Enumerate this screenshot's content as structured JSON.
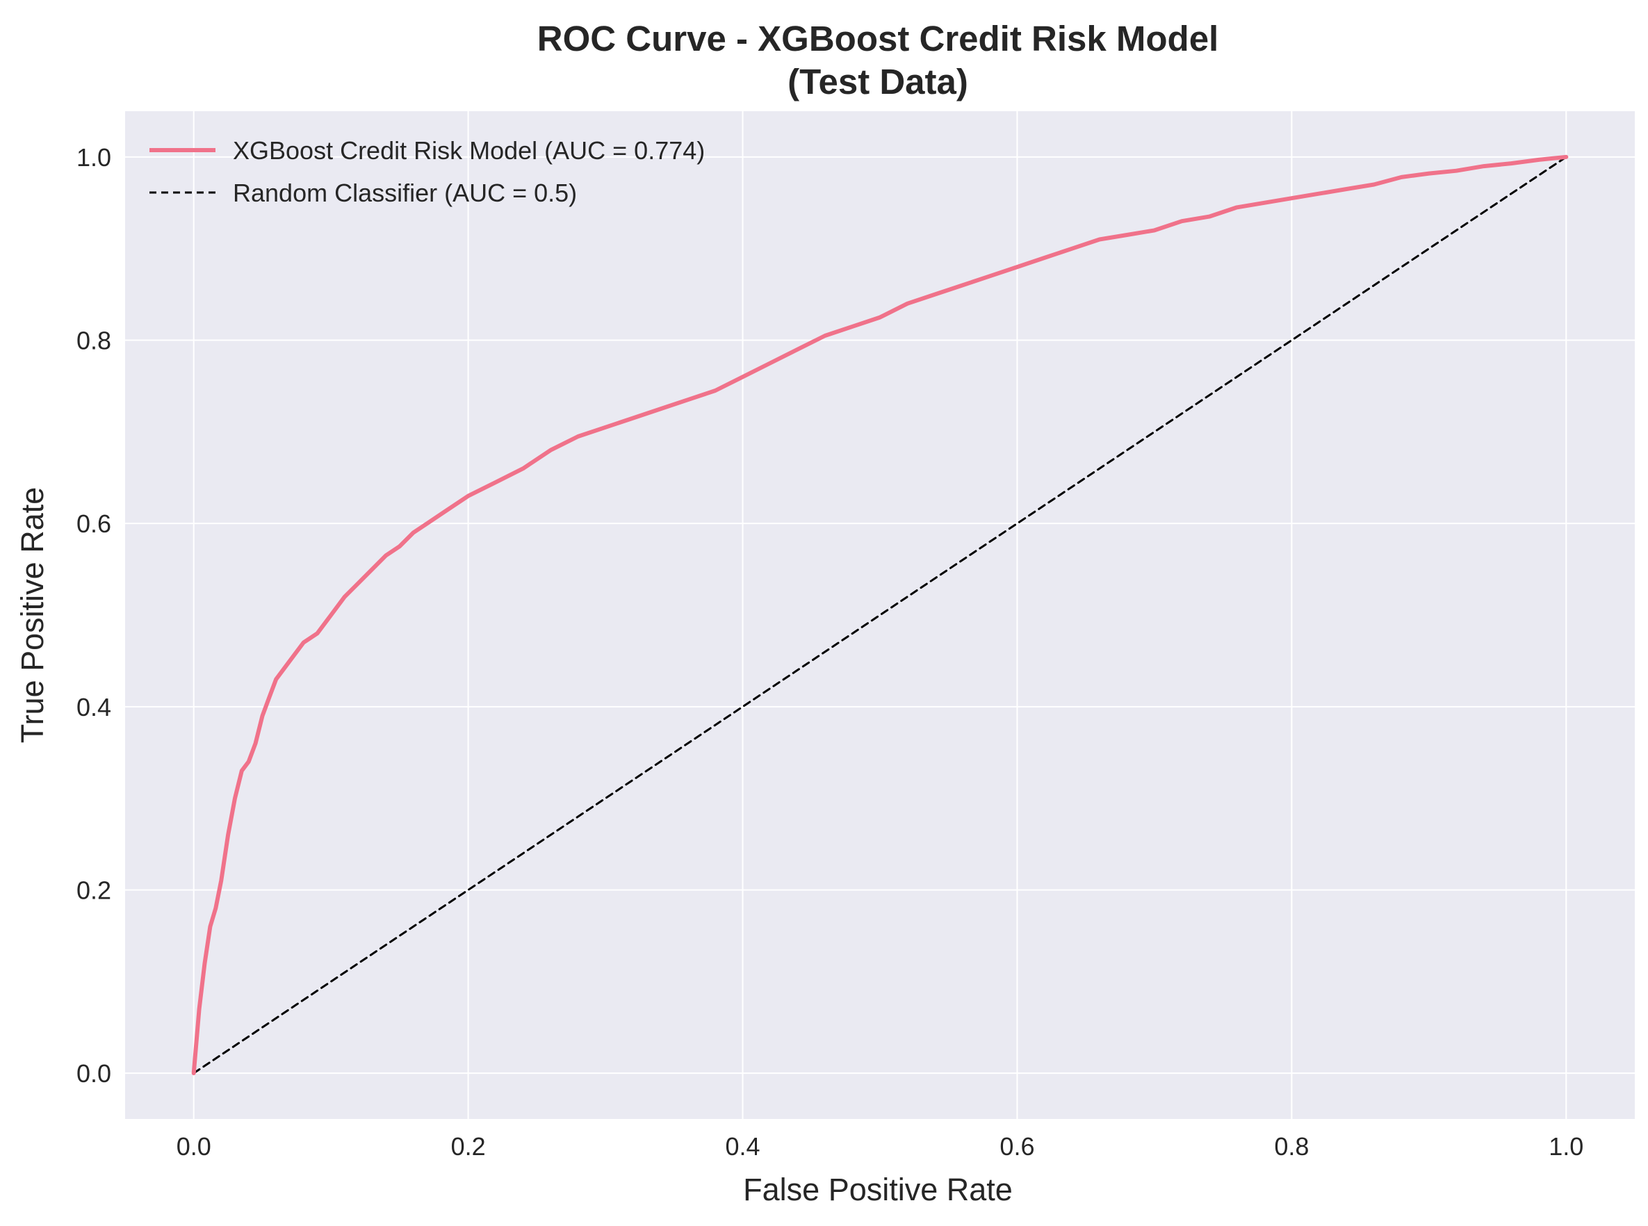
{
  "colors": {
    "plot_background": "#eaeaf2",
    "grid": "#ffffff",
    "model_line": "#f0728a",
    "random_line": "#000000",
    "text": "#262626"
  },
  "chart_data": {
    "type": "line",
    "title_line1": "ROC Curve - XGBoost Credit Risk Model",
    "title_line2": "(Test Data)",
    "xlabel": "False Positive Rate",
    "ylabel": "True Positive Rate",
    "xlim": [
      -0.05,
      1.05
    ],
    "ylim": [
      -0.05,
      1.05
    ],
    "grid": true,
    "legend_position": "top-left",
    "x_ticks": [
      "0.0",
      "0.2",
      "0.4",
      "0.6",
      "0.8",
      "1.0"
    ],
    "y_ticks": [
      "0.0",
      "0.2",
      "0.4",
      "0.6",
      "0.8",
      "1.0"
    ],
    "series": [
      {
        "name": "XGBoost Credit Risk Model (AUC = 0.774)",
        "style": "solid",
        "x": [
          0.0,
          0.004,
          0.008,
          0.012,
          0.016,
          0.02,
          0.025,
          0.03,
          0.035,
          0.04,
          0.045,
          0.05,
          0.055,
          0.06,
          0.065,
          0.07,
          0.08,
          0.09,
          0.1,
          0.11,
          0.12,
          0.13,
          0.14,
          0.15,
          0.16,
          0.17,
          0.18,
          0.2,
          0.22,
          0.24,
          0.26,
          0.28,
          0.3,
          0.32,
          0.34,
          0.36,
          0.38,
          0.4,
          0.42,
          0.44,
          0.46,
          0.48,
          0.5,
          0.52,
          0.54,
          0.56,
          0.58,
          0.6,
          0.62,
          0.64,
          0.66,
          0.68,
          0.7,
          0.72,
          0.74,
          0.76,
          0.78,
          0.8,
          0.82,
          0.84,
          0.86,
          0.88,
          0.9,
          0.92,
          0.94,
          0.96,
          0.98,
          1.0
        ],
        "y": [
          0.0,
          0.07,
          0.12,
          0.16,
          0.18,
          0.21,
          0.26,
          0.3,
          0.33,
          0.34,
          0.36,
          0.39,
          0.41,
          0.43,
          0.44,
          0.45,
          0.47,
          0.48,
          0.5,
          0.52,
          0.535,
          0.55,
          0.565,
          0.575,
          0.59,
          0.6,
          0.61,
          0.63,
          0.645,
          0.66,
          0.68,
          0.695,
          0.705,
          0.715,
          0.725,
          0.735,
          0.745,
          0.76,
          0.775,
          0.79,
          0.805,
          0.815,
          0.825,
          0.84,
          0.85,
          0.86,
          0.87,
          0.88,
          0.89,
          0.9,
          0.91,
          0.915,
          0.92,
          0.93,
          0.935,
          0.945,
          0.95,
          0.955,
          0.96,
          0.965,
          0.97,
          0.978,
          0.982,
          0.985,
          0.99,
          0.993,
          0.997,
          1.0
        ]
      },
      {
        "name": "Random Classifier (AUC = 0.5)",
        "style": "dashed",
        "x": [
          0.0,
          1.0
        ],
        "y": [
          0.0,
          1.0
        ]
      }
    ]
  }
}
